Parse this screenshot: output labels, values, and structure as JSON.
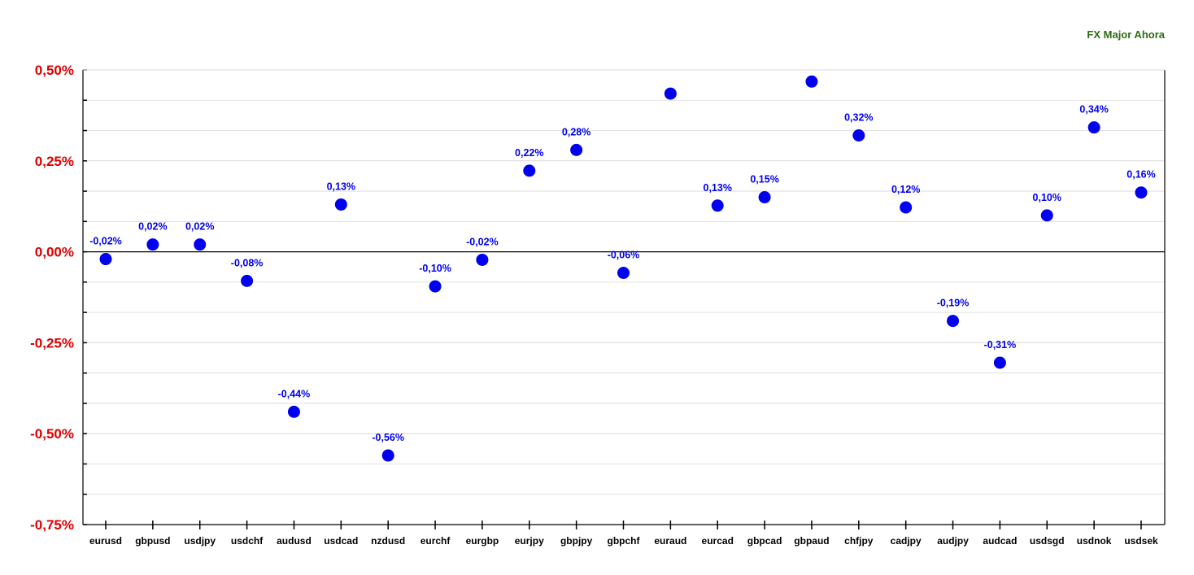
{
  "legend": {
    "label": "FX Major Ahora"
  },
  "colors": {
    "series": "#0000ee",
    "axis_tick_labels": "#dd0000",
    "legend_text": "#2e6b12",
    "grid": "#d9d9d9",
    "zero_line": "#000000"
  },
  "chart_data": {
    "type": "scatter",
    "title": "",
    "xlabel": "",
    "ylabel": "",
    "ylim": [
      -0.75,
      0.5
    ],
    "yticks": [
      0.5,
      0.25,
      0.0,
      -0.25,
      -0.5,
      -0.75
    ],
    "ytick_labels": [
      "0,50%",
      "0,25%",
      "0,00%",
      "-0,25%",
      "-0,50%",
      "-0,75%"
    ],
    "grid": true,
    "legend_position": "top-right",
    "categories": [
      "eurusd",
      "gbpusd",
      "usdjpy",
      "usdchf",
      "audusd",
      "usdcad",
      "nzdusd",
      "eurchf",
      "eurgbp",
      "eurjpy",
      "gbpjpy",
      "gbpchf",
      "euraud",
      "eurcad",
      "gbpcad",
      "gbpaud",
      "chfjpy",
      "cadjpy",
      "audjpy",
      "audcad",
      "usdsgd",
      "usdnok",
      "usdsek"
    ],
    "series": [
      {
        "name": "FX Major Ahora",
        "values": [
          -0.02,
          0.02,
          0.02,
          -0.08,
          -0.44,
          0.13,
          -0.56,
          -0.095,
          -0.022,
          0.223,
          0.28,
          -0.058,
          0.435,
          0.127,
          0.15,
          0.468,
          0.32,
          0.122,
          -0.19,
          -0.305,
          0.1,
          0.342,
          0.163
        ],
        "labels": [
          "-0,02%",
          "0,02%",
          "0,02%",
          "-0,08%",
          "-0,44%",
          "0,13%",
          "-0,56%",
          "-0,10%",
          "-0,02%",
          "0,22%",
          "0,28%",
          "-0,06%",
          "",
          "0,13%",
          "0,15%",
          "",
          "0,32%",
          "0,12%",
          "-0,19%",
          "-0,31%",
          "0,10%",
          "0,34%",
          "0,16%"
        ]
      }
    ]
  }
}
